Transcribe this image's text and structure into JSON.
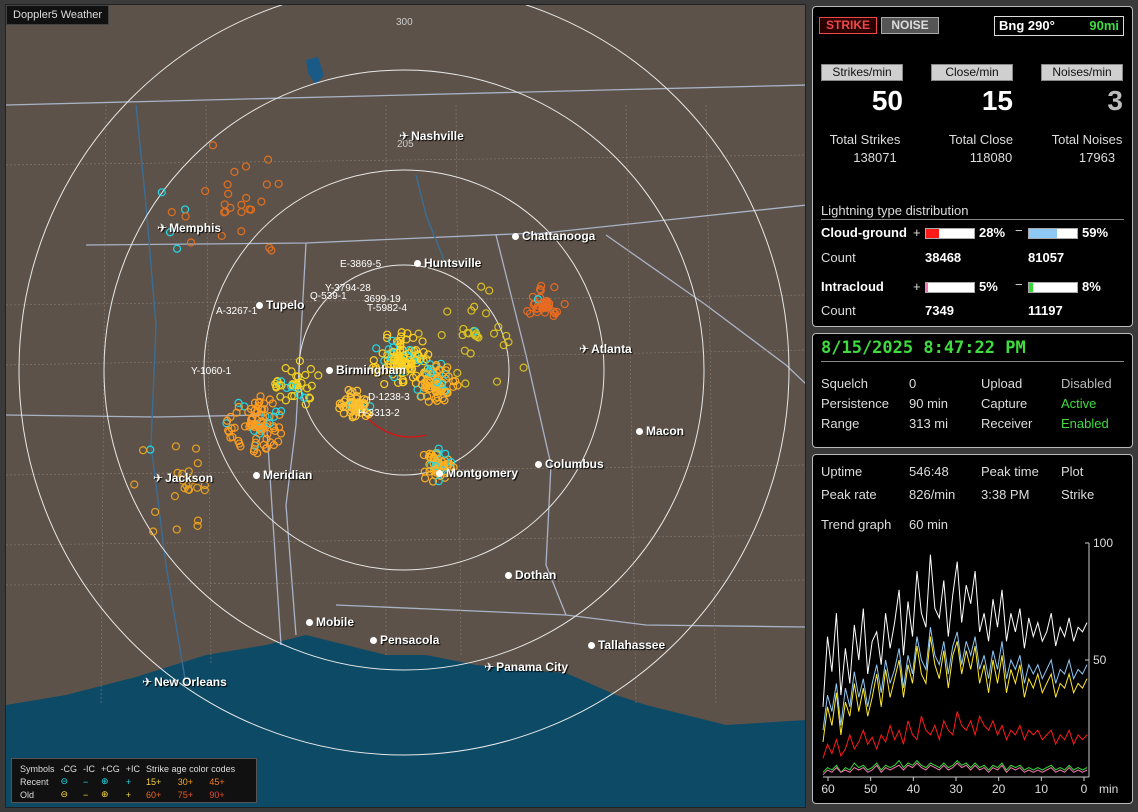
{
  "map": {
    "title": "Doppler5 Weather",
    "rings": [
      "300",
      "205"
    ],
    "cities": [
      {
        "name": "Nashville",
        "type": "plane"
      },
      {
        "name": "Memphis",
        "type": "plane"
      },
      {
        "name": "Chattanooga",
        "type": "dot"
      },
      {
        "name": "Huntsville",
        "type": "dot"
      },
      {
        "name": "Tupelo",
        "type": "dot"
      },
      {
        "name": "Atlanta",
        "type": "plane"
      },
      {
        "name": "Birmingham",
        "type": "dot"
      },
      {
        "name": "Macon",
        "type": "dot"
      },
      {
        "name": "Jackson",
        "type": "plane"
      },
      {
        "name": "Meridian",
        "type": "dot"
      },
      {
        "name": "Montgomery",
        "type": "dot"
      },
      {
        "name": "Columbus",
        "type": "dot"
      },
      {
        "name": "Dothan",
        "type": "dot"
      },
      {
        "name": "Mobile",
        "type": "dot"
      },
      {
        "name": "Pensacola",
        "type": "dot"
      },
      {
        "name": "Tallahassee",
        "type": "dot"
      },
      {
        "name": "Panama City",
        "type": "plane"
      },
      {
        "name": "New Orleans",
        "type": "plane"
      }
    ],
    "storm_labels": [
      "E-3869-5",
      "Y-3794-28",
      "Q-539-1",
      "3699-19",
      "T-5982-4",
      "A-3267-1",
      "Y-1060-1",
      "D-1238-3",
      "H-3313-2"
    ],
    "legend": {
      "symbols_label": "Symbols",
      "cols": [
        "-CG",
        "-IC",
        "+CG",
        "+IC"
      ],
      "recent_label": "Recent",
      "old_label": "Old",
      "recent_symbols": [
        "⊖",
        "−",
        "⊕",
        "+"
      ],
      "old_symbols": [
        "⊖",
        "−",
        "⊕",
        "+"
      ],
      "age_title": "Strike age color codes",
      "age_recent": [
        "15+",
        "30+",
        "45+"
      ],
      "age_old": [
        "60+",
        "75+",
        "90+"
      ]
    }
  },
  "panel1": {
    "strike_btn": "STRIKE",
    "noise_btn": "NOISE",
    "bearing_label": "Bng 290°",
    "bearing_range": "90mi",
    "rate_buttons": [
      "Strikes/min",
      "Close/min",
      "Noises/min"
    ],
    "rates": [
      "50",
      "15",
      "3"
    ],
    "totals_labels": [
      "Total Strikes",
      "Total Close",
      "Total Noises"
    ],
    "totals": [
      "138071",
      "118080",
      "17963"
    ],
    "dist_title": "Lightning type distribution",
    "cg_label": "Cloud-ground",
    "ic_label": "Intracloud",
    "count_label": "Count",
    "plus": "+",
    "minus": "−",
    "cg_pos_pct": "28%",
    "cg_neg_pct": "59%",
    "cg_pos_count": "38468",
    "cg_neg_count": "81057",
    "ic_pos_pct": "5%",
    "ic_neg_pct": "8%",
    "ic_pos_count": "7349",
    "ic_neg_count": "11197",
    "cg_pos_fraction": 0.28,
    "cg_neg_fraction": 0.59,
    "ic_pos_fraction": 0.05,
    "ic_neg_fraction": 0.08,
    "colors": {
      "cg_pos": "#ff1a1a",
      "cg_neg": "#8ec8f5",
      "ic_pos": "#f078b0",
      "ic_neg": "#36d836"
    }
  },
  "panel2": {
    "datetime": "8/15/2025 8:47:22 PM",
    "rows": [
      {
        "k1": "Squelch",
        "v1": "0",
        "k2": "Upload",
        "v2": "Disabled"
      },
      {
        "k1": "Persistence",
        "v1": "90 min",
        "k2": "Capture",
        "v2": "Active"
      },
      {
        "k1": "Range",
        "v1": "313 mi",
        "k2": "Receiver",
        "v2": "Enabled"
      }
    ]
  },
  "panel3": {
    "uptime_label": "Uptime",
    "uptime": "546:48",
    "peak_time_label": "Peak time",
    "peak_time": "",
    "plot_label": "Plot",
    "peak_rate_label": "Peak rate",
    "peak_rate": "826/min",
    "peak_clock": "3:38 PM",
    "plot_value": "Strike",
    "trend_label": "Trend graph",
    "trend_value": "60 min"
  },
  "chart_data": {
    "type": "line",
    "xlabel": "min",
    "x_ticks": [
      "60",
      "50",
      "40",
      "30",
      "20",
      "10",
      "0"
    ],
    "y_ticks": [
      "100",
      "50"
    ],
    "ylim": [
      0,
      100
    ],
    "xlim": [
      60,
      0
    ],
    "series": [
      {
        "color": "#ffffff",
        "values": [
          30,
          60,
          45,
          70,
          35,
          55,
          40,
          65,
          50,
          72,
          44,
          58,
          62,
          48,
          70,
          55,
          66,
          80,
          52,
          75,
          60,
          88,
          70,
          64,
          95,
          72,
          68,
          84,
          60,
          78,
          92,
          66,
          82,
          74,
          88,
          62,
          70,
          58,
          76,
          64,
          80,
          58,
          70,
          62,
          72,
          55,
          68,
          60,
          66,
          58,
          62,
          70,
          56,
          64,
          60,
          68,
          58,
          64,
          62,
          66
        ]
      },
      {
        "color": "#8ec8f5",
        "values": [
          20,
          35,
          28,
          40,
          22,
          38,
          30,
          45,
          34,
          42,
          30,
          40,
          48,
          36,
          50,
          40,
          46,
          55,
          38,
          52,
          44,
          60,
          50,
          46,
          64,
          52,
          48,
          58,
          44,
          56,
          62,
          48,
          58,
          52,
          60,
          46,
          52,
          42,
          54,
          46,
          58,
          42,
          50,
          46,
          52,
          40,
          48,
          44,
          48,
          42,
          46,
          50,
          40,
          46,
          44,
          50,
          42,
          46,
          44,
          48
        ]
      },
      {
        "color": "#ffe830",
        "values": [
          15,
          30,
          22,
          36,
          18,
          32,
          26,
          40,
          28,
          38,
          26,
          34,
          44,
          30,
          46,
          34,
          42,
          50,
          34,
          48,
          40,
          56,
          44,
          40,
          60,
          48,
          42,
          54,
          38,
          52,
          58,
          44,
          54,
          46,
          56,
          40,
          48,
          36,
          50,
          40,
          52,
          36,
          46,
          40,
          48,
          34,
          42,
          38,
          44,
          36,
          40,
          44,
          34,
          40,
          38,
          44,
          36,
          40,
          38,
          42
        ]
      },
      {
        "color": "#ff1a1a",
        "values": [
          8,
          14,
          10,
          16,
          9,
          12,
          18,
          12,
          15,
          20,
          14,
          17,
          12,
          18,
          15,
          22,
          16,
          20,
          14,
          24,
          18,
          16,
          26,
          20,
          18,
          22,
          16,
          24,
          20,
          18,
          28,
          22,
          20,
          24,
          18,
          26,
          22,
          20,
          24,
          18,
          22,
          16,
          20,
          18,
          22,
          16,
          20,
          18,
          20,
          16,
          18,
          20,
          14,
          18,
          16,
          20,
          14,
          18,
          16,
          18
        ]
      },
      {
        "color": "#36d836",
        "values": [
          2,
          4,
          3,
          5,
          2,
          4,
          3,
          6,
          4,
          5,
          3,
          4,
          6,
          3,
          5,
          4,
          5,
          7,
          4,
          6,
          5,
          7,
          5,
          4,
          6,
          5,
          4,
          6,
          4,
          5,
          7,
          5,
          6,
          4,
          6,
          4,
          5,
          3,
          5,
          4,
          6,
          3,
          5,
          4,
          5,
          3,
          4,
          3,
          4,
          3,
          4,
          5,
          3,
          4,
          3,
          5,
          3,
          4,
          3,
          4
        ]
      },
      {
        "color": "#f078b0",
        "values": [
          1,
          3,
          2,
          4,
          2,
          3,
          2,
          4,
          3,
          4,
          2,
          3,
          5,
          2,
          4,
          3,
          4,
          5,
          3,
          5,
          4,
          6,
          4,
          3,
          5,
          4,
          3,
          5,
          3,
          4,
          6,
          4,
          5,
          3,
          5,
          3,
          4,
          2,
          4,
          3,
          5,
          2,
          4,
          3,
          4,
          2,
          3,
          2,
          3,
          2,
          3,
          4,
          2,
          3,
          2,
          4,
          2,
          3,
          2,
          3
        ]
      }
    ]
  }
}
